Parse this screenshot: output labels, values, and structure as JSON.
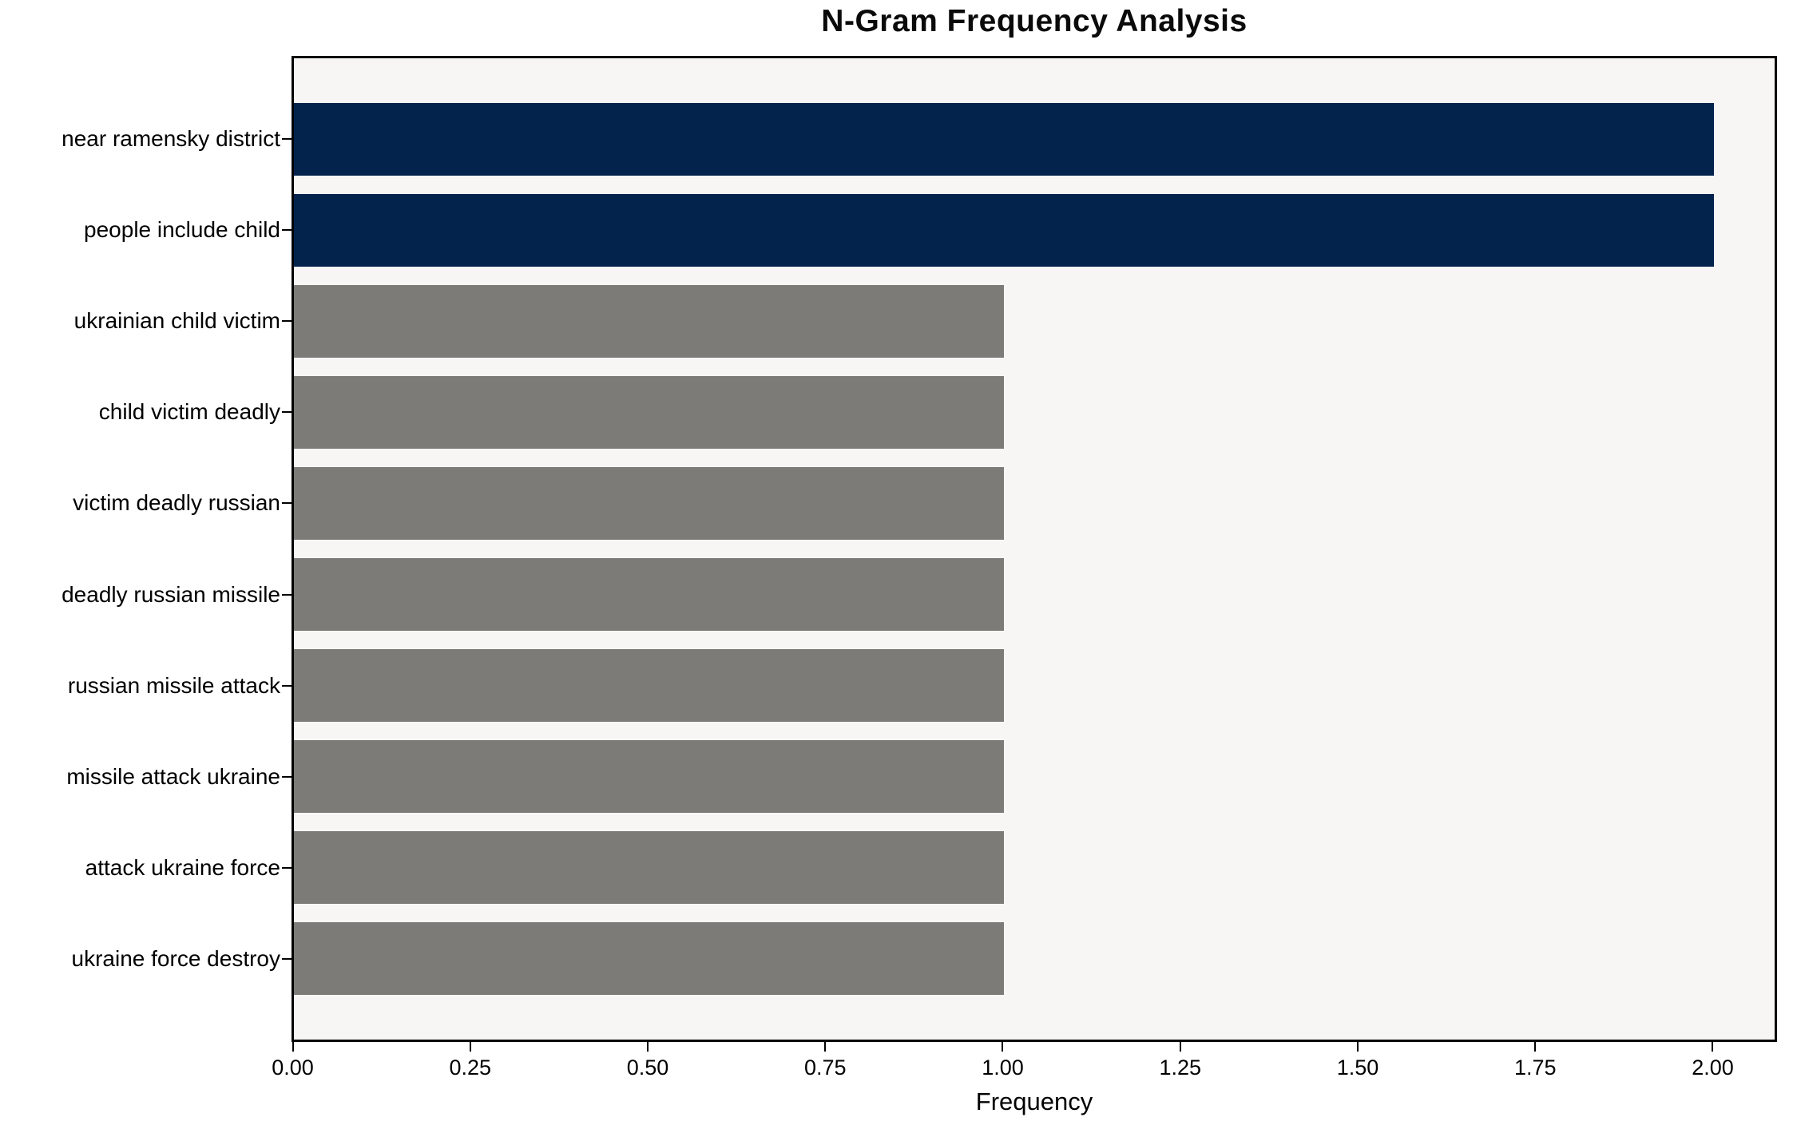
{
  "chart_data": {
    "type": "bar",
    "orientation": "horizontal",
    "title": "N-Gram Frequency Analysis",
    "xlabel": "Frequency",
    "ylabel": "",
    "categories": [
      "near ramensky district",
      "people include child",
      "ukrainian child victim",
      "child victim deadly",
      "victim deadly russian",
      "deadly russian missile",
      "russian missile attack",
      "missile attack ukraine",
      "attack ukraine force",
      "ukraine force destroy"
    ],
    "values": [
      2,
      2,
      1,
      1,
      1,
      1,
      1,
      1,
      1,
      1
    ],
    "bar_colors": [
      "#03234d",
      "#03234d",
      "#7c7b78",
      "#7c7b78",
      "#7c7b78",
      "#7c7b78",
      "#7c7b78",
      "#7c7b78",
      "#7c7b78",
      "#7c7b78"
    ],
    "highlight_color": "#03234d",
    "default_color": "#7c7b78",
    "xlim": [
      0,
      2.0855
    ],
    "xticks": [
      0.0,
      0.25,
      0.5,
      0.75,
      1.0,
      1.25,
      1.5,
      1.75,
      2.0
    ],
    "xtick_labels": [
      "0.00",
      "0.25",
      "0.50",
      "0.75",
      "1.00",
      "1.25",
      "1.50",
      "1.75",
      "2.00"
    ],
    "grid": false,
    "legend": "none",
    "plot_bg": "#f7f6f5",
    "figure_bg": "#ffffff",
    "frame_color": "#000000"
  }
}
